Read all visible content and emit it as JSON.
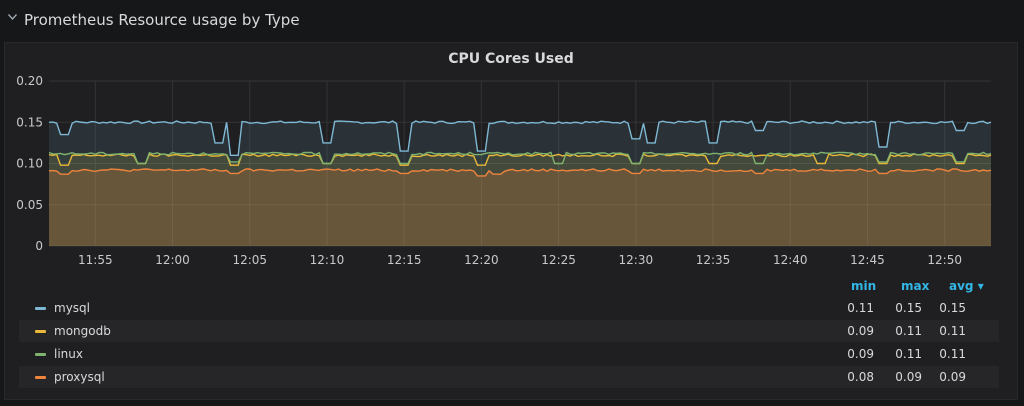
{
  "row": {
    "title": "Prometheus Resource usage by Type"
  },
  "panel": {
    "title": "CPU Cores Used"
  },
  "legend": {
    "headers": {
      "min": "min",
      "max": "max",
      "avg": "avg ▾"
    },
    "rows": [
      {
        "name": "mysql",
        "color": "#7eb8d4",
        "min": "0.11",
        "max": "0.15",
        "avg": "0.15"
      },
      {
        "name": "mongodb",
        "color": "#eab839",
        "min": "0.09",
        "max": "0.11",
        "avg": "0.11"
      },
      {
        "name": "linux",
        "color": "#7eb26d",
        "min": "0.09",
        "max": "0.11",
        "avg": "0.11"
      },
      {
        "name": "proxysql",
        "color": "#ef843c",
        "min": "0.08",
        "max": "0.09",
        "avg": "0.09"
      }
    ]
  },
  "chart_data": {
    "type": "area",
    "title": "CPU Cores Used",
    "xlabel": "",
    "ylabel": "",
    "ylim": [
      0,
      0.2
    ],
    "yticks": [
      "0",
      "0.05",
      "0.10",
      "0.15",
      "0.20"
    ],
    "xticks": [
      "11:55",
      "12:00",
      "12:05",
      "12:10",
      "12:15",
      "12:20",
      "12:25",
      "12:30",
      "12:35",
      "12:40",
      "12:45",
      "12:50"
    ],
    "x_range": [
      "11:52",
      "12:53"
    ],
    "grid": true,
    "legend": "bottom",
    "series": [
      {
        "name": "mysql",
        "color": "#7eb8d4",
        "base": 0.15,
        "dips": [
          [
            "11:53",
            0.135
          ],
          [
            "12:03",
            0.125
          ],
          [
            "12:04",
            0.11
          ],
          [
            "12:10",
            0.125
          ],
          [
            "12:15",
            0.115
          ],
          [
            "12:20",
            0.115
          ],
          [
            "12:30",
            0.13
          ],
          [
            "12:31",
            0.125
          ],
          [
            "12:35",
            0.125
          ],
          [
            "12:38",
            0.14
          ],
          [
            "12:46",
            0.12
          ],
          [
            "12:51",
            0.14
          ]
        ]
      },
      {
        "name": "mongodb",
        "color": "#eab839",
        "base": 0.11,
        "dips": [
          [
            "11:53",
            0.098
          ],
          [
            "11:58",
            0.1
          ],
          [
            "12:04",
            0.098
          ],
          [
            "12:10",
            0.1
          ],
          [
            "12:15",
            0.098
          ],
          [
            "12:20",
            0.098
          ],
          [
            "12:30",
            0.1
          ],
          [
            "12:35",
            0.1
          ],
          [
            "12:42",
            0.1
          ],
          [
            "12:46",
            0.1
          ],
          [
            "12:51",
            0.1
          ]
        ]
      },
      {
        "name": "linux",
        "color": "#7eb26d",
        "base": 0.112,
        "dips": [
          [
            "11:58",
            0.1
          ],
          [
            "12:04",
            0.102
          ],
          [
            "12:10",
            0.1
          ],
          [
            "12:15",
            0.1
          ],
          [
            "12:25",
            0.1
          ],
          [
            "12:30",
            0.1
          ],
          [
            "12:38",
            0.1
          ],
          [
            "12:46",
            0.102
          ],
          [
            "12:51",
            0.102
          ]
        ]
      },
      {
        "name": "proxysql",
        "color": "#ef843c",
        "base": 0.092,
        "dips": [
          [
            "11:53",
            0.087
          ],
          [
            "12:04",
            0.088
          ],
          [
            "12:15",
            0.088
          ],
          [
            "12:20",
            0.085
          ],
          [
            "12:21",
            0.087
          ],
          [
            "12:30",
            0.088
          ],
          [
            "12:38",
            0.088
          ],
          [
            "12:46",
            0.088
          ]
        ]
      }
    ]
  }
}
